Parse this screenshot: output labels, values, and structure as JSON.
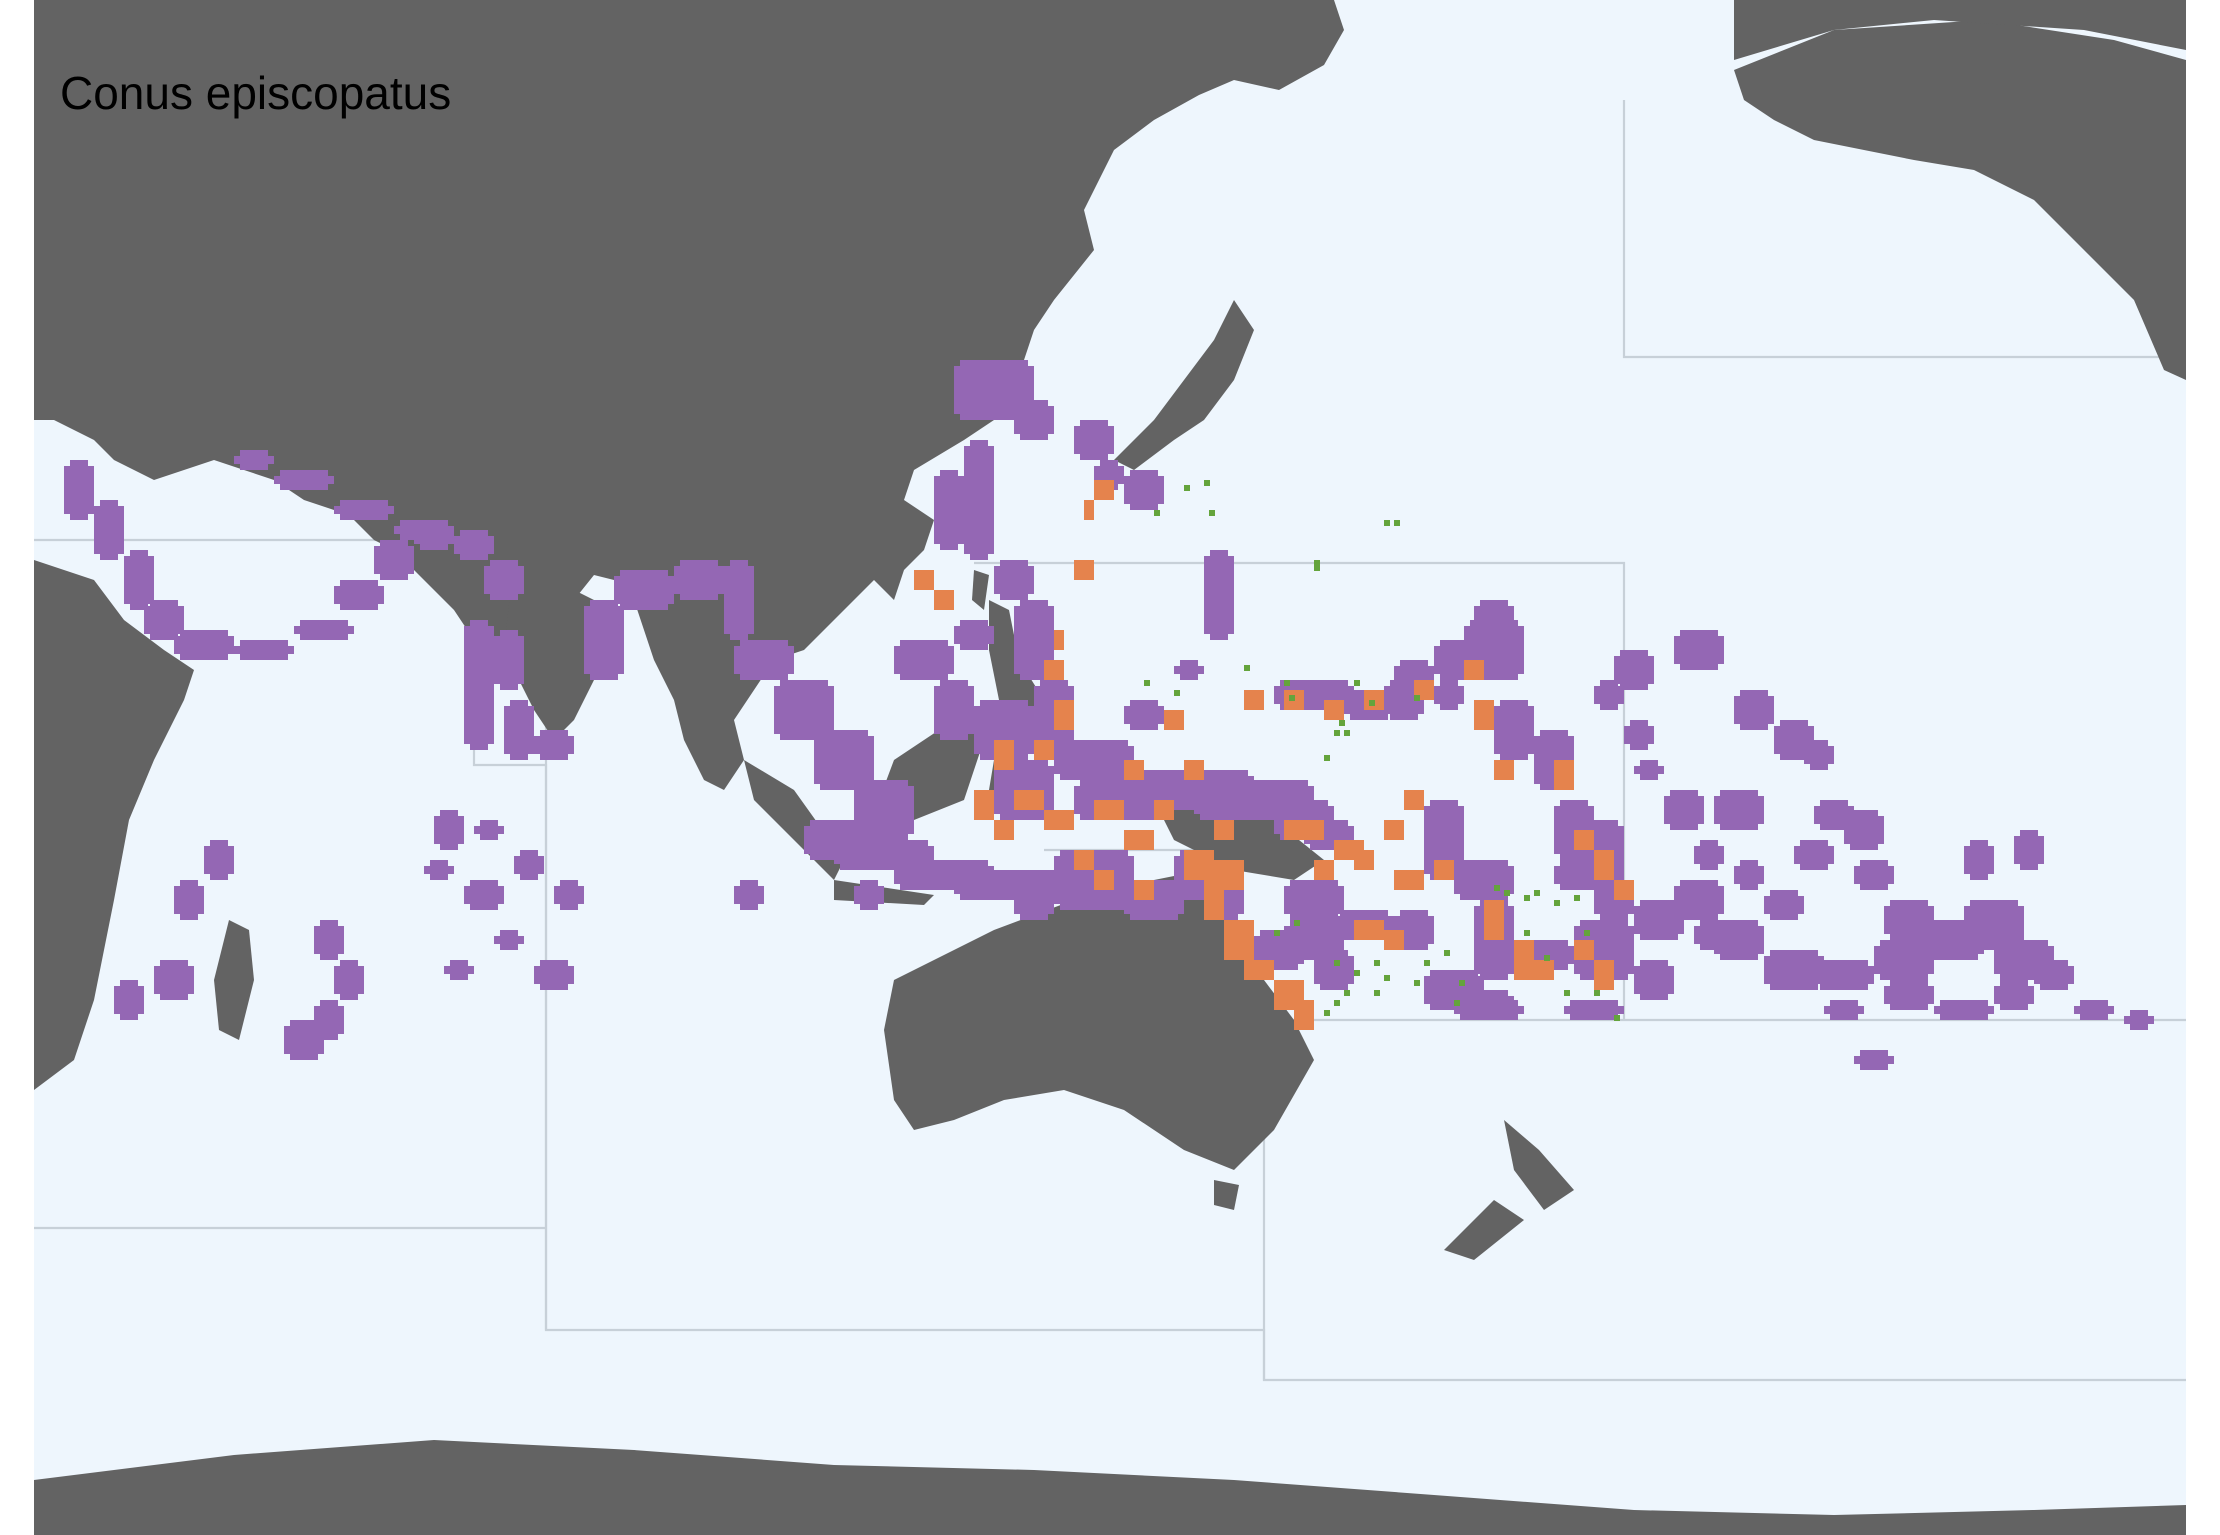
{
  "map": {
    "title": "Conus episcopatus",
    "colors": {
      "ocean": "#eef6fd",
      "land": "#636363",
      "boundary": "#c7d0d8",
      "range": "#9467b4",
      "occurrence": "#e5834d",
      "record": "#64a43c",
      "title_text": "#000000"
    }
  }
}
